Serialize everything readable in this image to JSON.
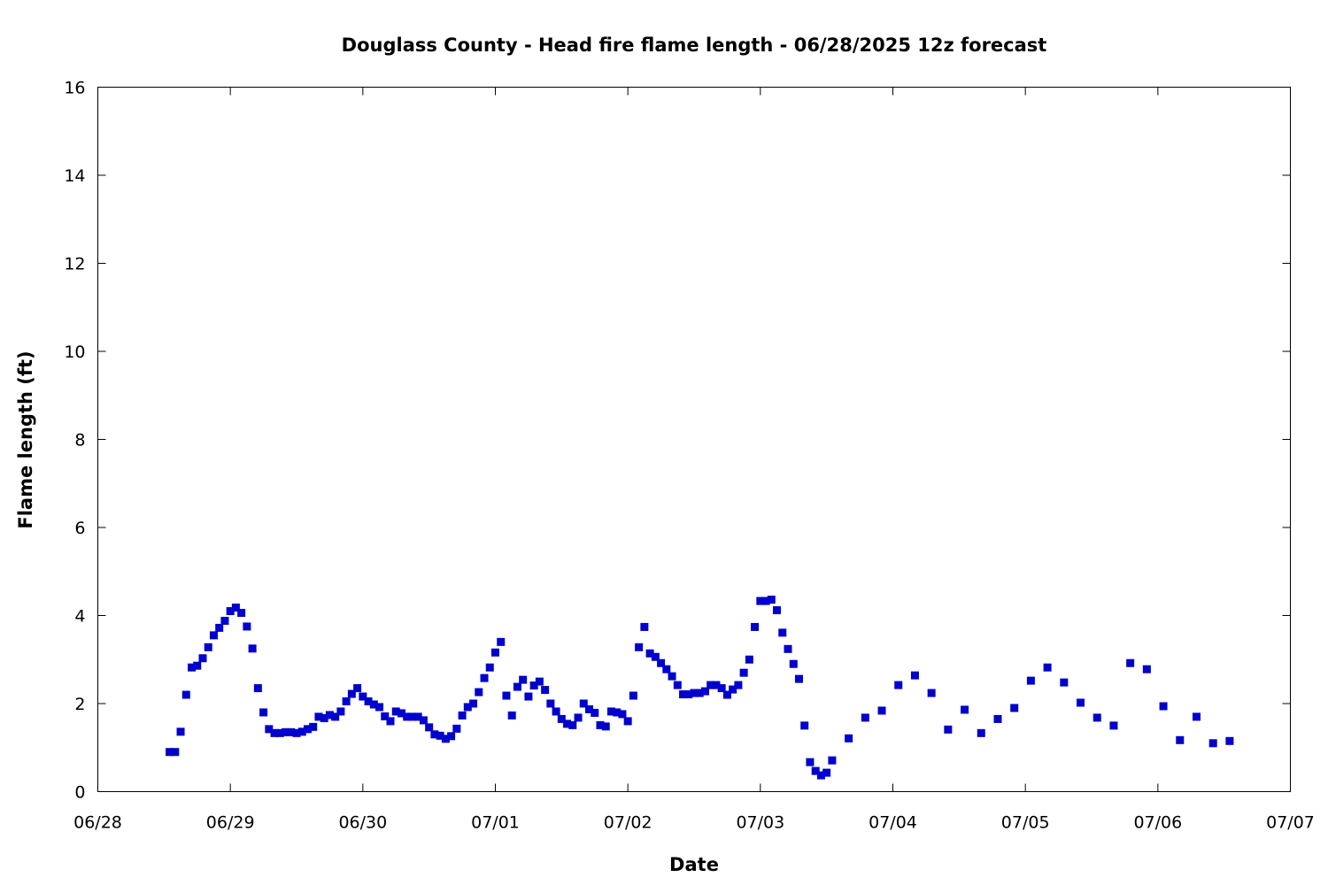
{
  "chart_data": {
    "type": "scatter",
    "title": "Douglass County - Head fire flame length - 06/28/2025 12z forecast",
    "xlabel": "Date",
    "ylabel": "Flame length (ft)",
    "x_ticks": [
      "06/28",
      "06/29",
      "06/30",
      "07/01",
      "07/02",
      "07/03",
      "07/04",
      "07/05",
      "07/06",
      "07/07"
    ],
    "y_ticks": [
      "0",
      "2",
      "4",
      "6",
      "8",
      "10",
      "12",
      "14",
      "16"
    ],
    "xlim": [
      "06/28 00:00",
      "07/07 00:00"
    ],
    "ylim": [
      0,
      16
    ],
    "grid": false,
    "marker_color": "#0000cc",
    "series": [
      {
        "points": [
          [
            "06/28 13:00",
            0.9
          ],
          [
            "06/28 14:00",
            0.9
          ],
          [
            "06/28 15:00",
            1.36
          ],
          [
            "06/28 16:00",
            2.2
          ],
          [
            "06/28 17:00",
            2.82
          ],
          [
            "06/28 18:00",
            2.86
          ],
          [
            "06/28 19:00",
            3.03
          ],
          [
            "06/28 20:00",
            3.28
          ],
          [
            "06/28 21:00",
            3.55
          ],
          [
            "06/28 22:00",
            3.72
          ],
          [
            "06/28 23:00",
            3.88
          ],
          [
            "06/29 00:00",
            4.1
          ],
          [
            "06/29 01:00",
            4.18
          ],
          [
            "06/29 02:00",
            4.06
          ],
          [
            "06/29 03:00",
            3.75
          ],
          [
            "06/29 04:00",
            3.25
          ],
          [
            "06/29 05:00",
            2.35
          ],
          [
            "06/29 06:00",
            1.8
          ],
          [
            "06/29 07:00",
            1.42
          ],
          [
            "06/29 08:00",
            1.33
          ],
          [
            "06/29 09:00",
            1.33
          ],
          [
            "06/29 10:00",
            1.35
          ],
          [
            "06/29 11:00",
            1.35
          ],
          [
            "06/29 12:00",
            1.33
          ],
          [
            "06/29 13:00",
            1.36
          ],
          [
            "06/29 14:00",
            1.42
          ],
          [
            "06/29 15:00",
            1.47
          ],
          [
            "06/29 16:00",
            1.7
          ],
          [
            "06/29 17:00",
            1.67
          ],
          [
            "06/29 18:00",
            1.74
          ],
          [
            "06/29 19:00",
            1.7
          ],
          [
            "06/29 20:00",
            1.82
          ],
          [
            "06/29 21:00",
            2.05
          ],
          [
            "06/29 22:00",
            2.22
          ],
          [
            "06/29 23:00",
            2.35
          ],
          [
            "06/30 00:00",
            2.16
          ],
          [
            "06/30 01:00",
            2.05
          ],
          [
            "06/30 02:00",
            1.98
          ],
          [
            "06/30 03:00",
            1.92
          ],
          [
            "06/30 04:00",
            1.71
          ],
          [
            "06/30 05:00",
            1.6
          ],
          [
            "06/30 06:00",
            1.82
          ],
          [
            "06/30 07:00",
            1.78
          ],
          [
            "06/30 08:00",
            1.7
          ],
          [
            "06/30 09:00",
            1.7
          ],
          [
            "06/30 10:00",
            1.7
          ],
          [
            "06/30 11:00",
            1.62
          ],
          [
            "06/30 12:00",
            1.46
          ],
          [
            "06/30 13:00",
            1.3
          ],
          [
            "06/30 14:00",
            1.27
          ],
          [
            "06/30 15:00",
            1.2
          ],
          [
            "06/30 16:00",
            1.26
          ],
          [
            "06/30 17:00",
            1.43
          ],
          [
            "06/30 18:00",
            1.73
          ],
          [
            "06/30 19:00",
            1.92
          ],
          [
            "06/30 20:00",
            2.0
          ],
          [
            "06/30 21:00",
            2.26
          ],
          [
            "06/30 22:00",
            2.58
          ],
          [
            "06/30 23:00",
            2.82
          ],
          [
            "07/01 00:00",
            3.16
          ],
          [
            "07/01 01:00",
            3.4
          ],
          [
            "07/01 02:00",
            2.18
          ],
          [
            "07/01 03:00",
            1.73
          ],
          [
            "07/01 04:00",
            2.38
          ],
          [
            "07/01 05:00",
            2.54
          ],
          [
            "07/01 06:00",
            2.16
          ],
          [
            "07/01 07:00",
            2.41
          ],
          [
            "07/01 08:00",
            2.5
          ],
          [
            "07/01 09:00",
            2.31
          ],
          [
            "07/01 10:00",
            2.0
          ],
          [
            "07/01 11:00",
            1.82
          ],
          [
            "07/01 12:00",
            1.65
          ],
          [
            "07/01 13:00",
            1.54
          ],
          [
            "07/01 14:00",
            1.51
          ],
          [
            "07/01 15:00",
            1.68
          ],
          [
            "07/01 16:00",
            2.0
          ],
          [
            "07/01 17:00",
            1.87
          ],
          [
            "07/01 18:00",
            1.79
          ],
          [
            "07/01 19:00",
            1.51
          ],
          [
            "07/01 20:00",
            1.48
          ],
          [
            "07/01 21:00",
            1.82
          ],
          [
            "07/01 22:00",
            1.8
          ],
          [
            "07/01 23:00",
            1.76
          ],
          [
            "07/02 00:00",
            1.6
          ],
          [
            "07/02 01:00",
            2.18
          ],
          [
            "07/02 02:00",
            3.28
          ],
          [
            "07/02 03:00",
            3.74
          ],
          [
            "07/02 04:00",
            3.14
          ],
          [
            "07/02 05:00",
            3.06
          ],
          [
            "07/02 06:00",
            2.92
          ],
          [
            "07/02 07:00",
            2.78
          ],
          [
            "07/02 08:00",
            2.62
          ],
          [
            "07/02 09:00",
            2.42
          ],
          [
            "07/02 10:00",
            2.21
          ],
          [
            "07/02 11:00",
            2.21
          ],
          [
            "07/02 12:00",
            2.24
          ],
          [
            "07/02 13:00",
            2.24
          ],
          [
            "07/02 14:00",
            2.28
          ],
          [
            "07/02 15:00",
            2.42
          ],
          [
            "07/02 16:00",
            2.42
          ],
          [
            "07/02 17:00",
            2.35
          ],
          [
            "07/02 18:00",
            2.2
          ],
          [
            "07/02 19:00",
            2.32
          ],
          [
            "07/02 20:00",
            2.42
          ],
          [
            "07/02 21:00",
            2.7
          ],
          [
            "07/02 22:00",
            3.0
          ],
          [
            "07/02 23:00",
            3.74
          ],
          [
            "07/03 00:00",
            4.33
          ],
          [
            "07/03 01:00",
            4.33
          ],
          [
            "07/03 02:00",
            4.36
          ],
          [
            "07/03 03:00",
            4.12
          ],
          [
            "07/03 04:00",
            3.61
          ],
          [
            "07/03 05:00",
            3.24
          ],
          [
            "07/03 06:00",
            2.9
          ],
          [
            "07/03 07:00",
            2.56
          ],
          [
            "07/03 08:00",
            1.5
          ],
          [
            "07/03 09:00",
            0.67
          ],
          [
            "07/03 10:00",
            0.47
          ],
          [
            "07/03 11:00",
            0.37
          ],
          [
            "07/03 12:00",
            0.43
          ],
          [
            "07/03 13:00",
            0.71
          ],
          [
            "07/03 16:00",
            1.21
          ],
          [
            "07/03 19:00",
            1.68
          ],
          [
            "07/03 22:00",
            1.84
          ],
          [
            "07/04 01:00",
            2.42
          ],
          [
            "07/04 04:00",
            2.64
          ],
          [
            "07/04 07:00",
            2.24
          ],
          [
            "07/04 10:00",
            1.41
          ],
          [
            "07/04 13:00",
            1.86
          ],
          [
            "07/04 16:00",
            1.33
          ],
          [
            "07/04 19:00",
            1.65
          ],
          [
            "07/04 22:00",
            1.9
          ],
          [
            "07/05 01:00",
            2.52
          ],
          [
            "07/05 04:00",
            2.82
          ],
          [
            "07/05 07:00",
            2.48
          ],
          [
            "07/05 10:00",
            2.02
          ],
          [
            "07/05 13:00",
            1.68
          ],
          [
            "07/05 16:00",
            1.5
          ],
          [
            "07/05 19:00",
            2.92
          ],
          [
            "07/05 22:00",
            2.78
          ],
          [
            "07/06 01:00",
            1.94
          ],
          [
            "07/06 04:00",
            1.17
          ],
          [
            "07/06 07:00",
            1.7
          ],
          [
            "07/06 10:00",
            1.1
          ],
          [
            "07/06 13:00",
            1.15
          ]
        ]
      }
    ]
  }
}
